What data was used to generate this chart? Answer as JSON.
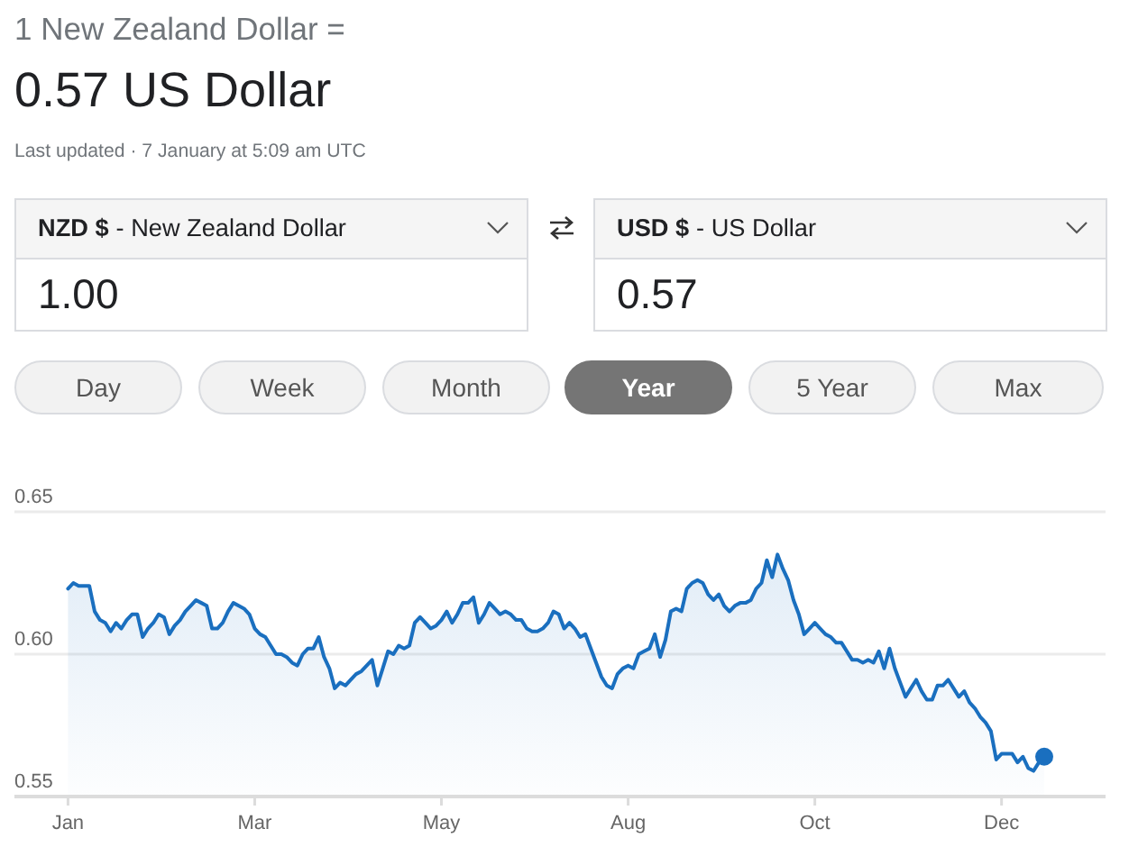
{
  "chart_data": {
    "type": "area",
    "title": "1 New Zealand Dollar =",
    "subtitle": "0.57 US Dollar",
    "annotations": [
      "Last updated · 7 January at 5:09 am UTC",
      "NZD $",
      "- New Zealand Dollar",
      "1.00",
      "USD $",
      "- US Dollar",
      "0.57",
      "Day",
      "Week",
      "Month",
      "Year",
      "5 Year",
      "Max"
    ],
    "categories": [
      "Jan",
      null,
      null,
      null,
      null,
      null,
      null,
      null,
      null,
      null,
      null,
      null,
      null,
      null,
      null,
      null,
      null,
      null,
      null,
      null,
      null,
      null,
      null,
      null,
      null,
      null,
      null,
      null,
      null,
      null,
      null,
      null,
      null,
      null,
      null,
      "Mar",
      null,
      null,
      null,
      null,
      null,
      null,
      null,
      null,
      null,
      null,
      null,
      null,
      null,
      null,
      null,
      null,
      null,
      null,
      null,
      null,
      null,
      null,
      null,
      null,
      null,
      null,
      null,
      null,
      null,
      null,
      null,
      null,
      null,
      null,
      "May",
      null,
      null,
      null,
      null,
      null,
      null,
      null,
      null,
      null,
      null,
      null,
      null,
      null,
      null,
      null,
      null,
      null,
      null,
      null,
      null,
      null,
      null,
      null,
      null,
      null,
      null,
      null,
      null,
      null,
      null,
      null,
      null,
      null,
      null,
      "Aug",
      null,
      null,
      null,
      null,
      null,
      null,
      null,
      null,
      null,
      null,
      null,
      null,
      null,
      null,
      null,
      null,
      null,
      null,
      null,
      null,
      null,
      null,
      null,
      null,
      null,
      null,
      null,
      null,
      null,
      null,
      null,
      null,
      null,
      null,
      "Oct",
      null,
      null,
      null,
      null,
      null,
      null,
      null,
      null,
      null,
      null,
      null,
      null,
      null,
      null,
      null,
      null,
      null,
      null,
      null,
      null,
      null,
      null,
      null,
      null,
      null,
      null,
      null,
      null,
      null,
      null,
      null,
      null,
      null,
      null,
      "Dec",
      null,
      null,
      null,
      null,
      null,
      null,
      null,
      null
    ],
    "series": [
      {
        "color": "#1a6fbf",
        "values": [
          0.623,
          0.625,
          0.624,
          0.624,
          0.624,
          0.615,
          0.612,
          0.611,
          0.608,
          0.611,
          0.609,
          0.612,
          0.614,
          0.614,
          0.606,
          0.609,
          0.611,
          0.614,
          0.613,
          0.607,
          0.61,
          0.612,
          0.615,
          0.617,
          0.619,
          0.618,
          0.617,
          0.609,
          0.609,
          0.611,
          0.615,
          0.618,
          0.617,
          0.616,
          0.614,
          0.609,
          0.607,
          0.606,
          0.603,
          0.6,
          0.6,
          0.599,
          0.597,
          0.596,
          0.6,
          0.602,
          0.602,
          0.606,
          0.599,
          0.595,
          0.588,
          0.59,
          0.589,
          0.591,
          0.593,
          0.594,
          0.596,
          0.598,
          0.589,
          0.595,
          0.601,
          0.6,
          0.603,
          0.602,
          0.603,
          0.611,
          0.613,
          0.611,
          0.609,
          0.61,
          0.612,
          0.615,
          0.611,
          0.614,
          0.618,
          0.618,
          0.62,
          0.611,
          0.614,
          0.618,
          0.616,
          0.614,
          0.615,
          0.614,
          0.612,
          0.612,
          0.609,
          0.608,
          0.608,
          0.609,
          0.611,
          0.615,
          0.614,
          0.609,
          0.611,
          0.609,
          0.606,
          0.607,
          0.602,
          0.597,
          0.592,
          0.589,
          0.588,
          0.593,
          0.595,
          0.596,
          0.595,
          0.6,
          0.601,
          0.602,
          0.607,
          0.599,
          0.605,
          0.615,
          0.616,
          0.615,
          0.623,
          0.625,
          0.626,
          0.625,
          0.621,
          0.619,
          0.621,
          0.617,
          0.615,
          0.617,
          0.618,
          0.618,
          0.619,
          0.623,
          0.625,
          0.633,
          0.627,
          0.635,
          0.63,
          0.626,
          0.619,
          0.614,
          0.607,
          0.609,
          0.611,
          0.609,
          0.607,
          0.606,
          0.604,
          0.604,
          0.601,
          0.598,
          0.598,
          0.597,
          0.598,
          0.597,
          0.601,
          0.595,
          0.602,
          0.595,
          0.59,
          0.585,
          0.588,
          0.591,
          0.587,
          0.584,
          0.584,
          0.589,
          0.589,
          0.591,
          0.588,
          0.585,
          0.587,
          0.583,
          0.581,
          0.578,
          0.576,
          0.573,
          0.563,
          0.565,
          0.565,
          0.565,
          0.562,
          0.564,
          0.56,
          0.559,
          0.562,
          0.564
        ]
      },
      {
        "type": "scatter",
        "color": "#1a6fbf",
        "values": [
          null,
          null,
          null,
          null,
          null,
          null,
          null,
          null,
          null,
          null,
          null,
          null,
          null,
          null,
          null,
          null,
          null,
          null,
          null,
          null,
          null,
          null,
          null,
          null,
          null,
          null,
          null,
          null,
          null,
          null,
          null,
          null,
          null,
          null,
          null,
          null,
          null,
          null,
          null,
          null,
          null,
          null,
          null,
          null,
          null,
          null,
          null,
          null,
          null,
          null,
          null,
          null,
          null,
          null,
          null,
          null,
          null,
          null,
          null,
          null,
          null,
          null,
          null,
          null,
          null,
          null,
          null,
          null,
          null,
          null,
          null,
          null,
          null,
          null,
          null,
          null,
          null,
          null,
          null,
          null,
          null,
          null,
          null,
          null,
          null,
          null,
          null,
          null,
          null,
          null,
          null,
          null,
          null,
          null,
          null,
          null,
          null,
          null,
          null,
          null,
          null,
          null,
          null,
          null,
          null,
          null,
          null,
          null,
          null,
          null,
          null,
          null,
          null,
          null,
          null,
          null,
          null,
          null,
          null,
          null,
          null,
          null,
          null,
          null,
          null,
          null,
          null,
          null,
          null,
          null,
          null,
          null,
          null,
          null,
          null,
          null,
          null,
          null,
          null,
          null,
          null,
          null,
          null,
          null,
          null,
          null,
          null,
          null,
          null,
          null,
          null,
          null,
          null,
          null,
          null,
          null,
          null,
          null,
          null,
          null,
          null,
          null,
          null,
          null,
          null,
          null,
          null,
          null,
          null,
          null,
          null,
          null,
          null,
          null,
          null,
          null,
          null,
          null,
          null,
          null,
          null,
          null,
          null,
          0.564
        ]
      }
    ],
    "ylim": [
      0.55,
      0.65
    ],
    "yticks": [
      0.55,
      {
        "value": 0.6,
        "label": "0.60"
      },
      0.65
    ],
    "grid": "y"
  }
}
